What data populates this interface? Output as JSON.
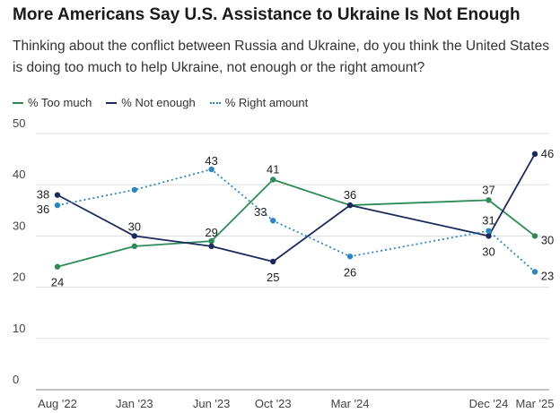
{
  "title": "More Americans Say U.S. Assistance to Ukraine Is Not Enough",
  "subtitle": "Thinking about the conflict between Russia and Ukraine, do you think the United States is doing too much to help Ukraine, not enough or the right amount?",
  "colors": {
    "too_much": "#2e8b57",
    "not_enough": "#1b2a5c",
    "right_amount": "#2e86c1"
  },
  "chart_data": {
    "type": "line",
    "title": "More Americans Say U.S. Assistance to Ukraine Is Not Enough",
    "xlabel": "",
    "ylabel": "",
    "ylim": [
      0,
      50
    ],
    "yticks": [
      0,
      10,
      20,
      30,
      40,
      50
    ],
    "grid": true,
    "legend": "top-left",
    "x_tick_labels": [
      "Aug '22",
      "Jan '23",
      "Jun '23",
      "Oct '23",
      "Mar '24",
      "Dec '24",
      "Mar '25"
    ],
    "x_tick_months": [
      0,
      5,
      10,
      14,
      19,
      28,
      31
    ],
    "x_months": [
      0,
      5,
      10,
      14,
      19,
      28,
      31
    ],
    "series": [
      {
        "name": "% Too much",
        "style": "solid",
        "color": "#2e8b57",
        "values": [
          24,
          28,
          29,
          41,
          36,
          37,
          30
        ],
        "labels": [
          "24",
          "",
          "29",
          "41",
          "",
          "37",
          "30"
        ]
      },
      {
        "name": "% Not enough",
        "style": "solid",
        "color": "#1b2a5c",
        "values": [
          38,
          30,
          28,
          25,
          36,
          30,
          46
        ],
        "labels": [
          "38",
          "30",
          "",
          "25",
          "36",
          "30",
          "46"
        ]
      },
      {
        "name": "% Right amount",
        "style": "dotted",
        "color": "#2e86c1",
        "values": [
          36,
          39,
          43,
          33,
          26,
          31,
          23
        ],
        "labels": [
          "36",
          "",
          "43",
          "33",
          "26",
          "31",
          "23"
        ]
      }
    ]
  }
}
